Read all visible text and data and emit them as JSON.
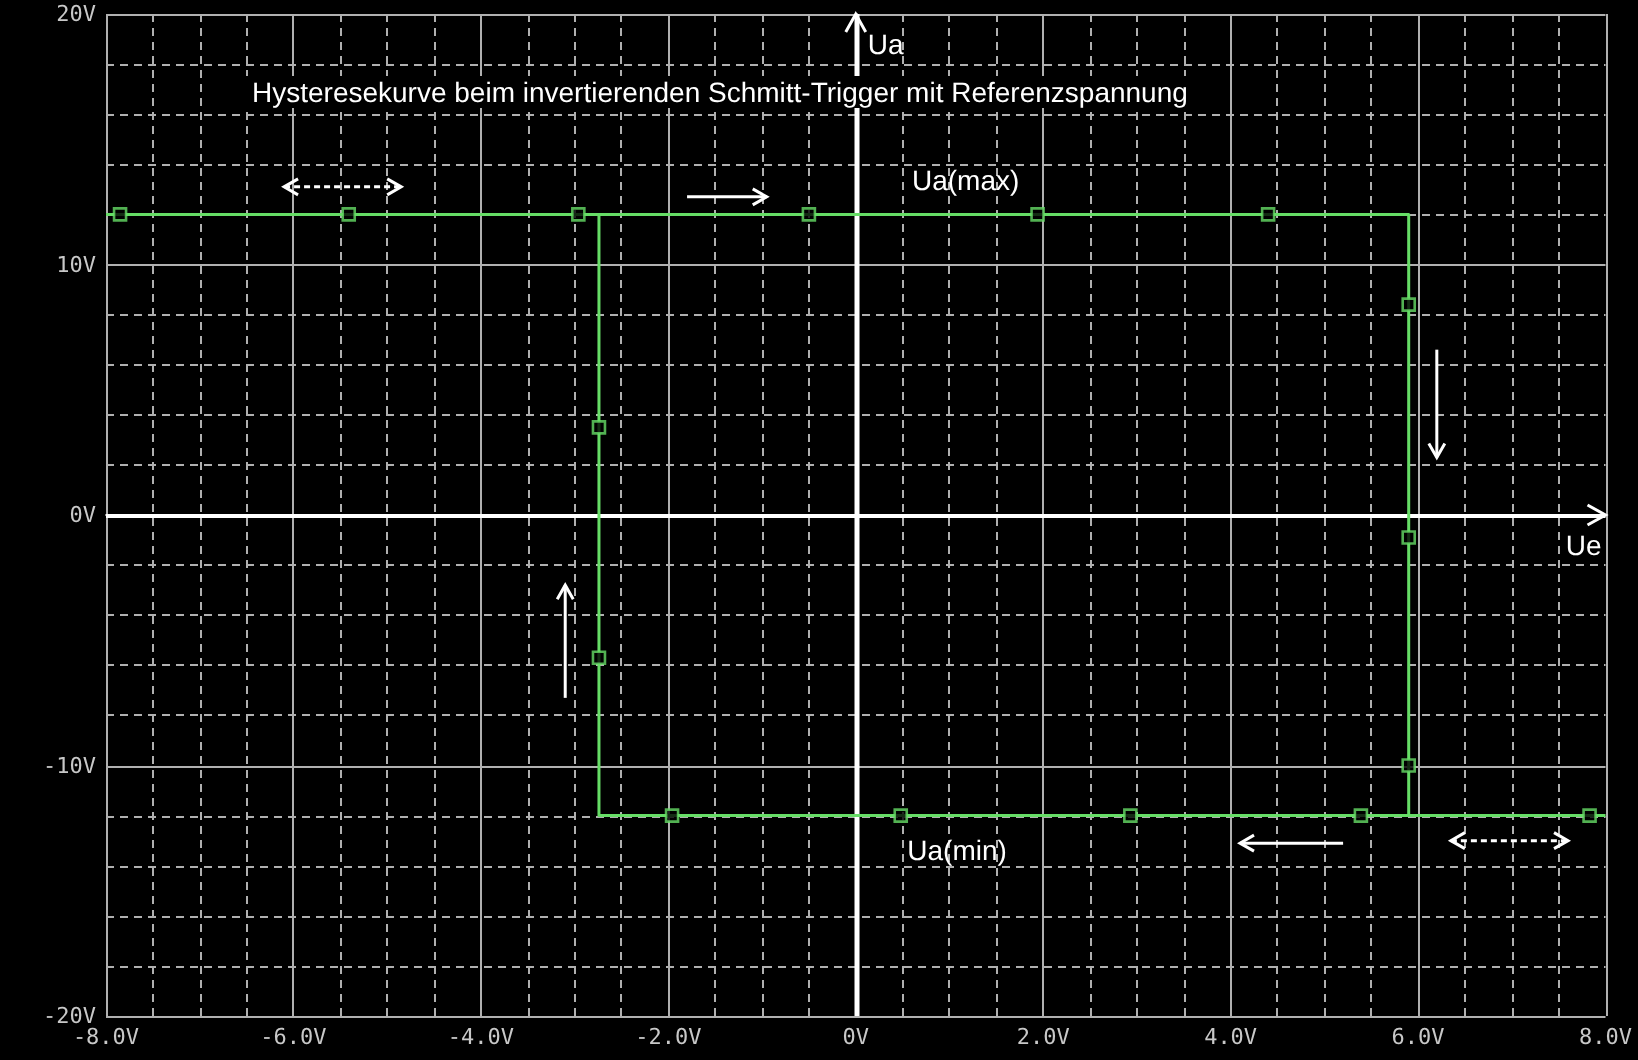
{
  "chart_data": {
    "type": "line",
    "title": "Hysteresekurve beim invertierenden Schmitt-Trigger mit Referenzspannung",
    "series": [
      {
        "color": "#66dd66",
        "marker": "none",
        "x": [
          -8,
          5.9,
          5.9
        ],
        "values": [
          12,
          12,
          -12
        ]
      },
      {
        "color": "#66dd66",
        "marker": "none",
        "x": [
          8,
          -2.74,
          -2.74
        ],
        "values": [
          -12,
          -12,
          12
        ]
      },
      {
        "type": "scatter",
        "color": "#66dd66",
        "marker": "square",
        "x": [
          -7.85,
          -5.41,
          -2.96,
          -0.5,
          1.94,
          4.4,
          5.9,
          5.9,
          5.9,
          7.83,
          5.39,
          2.93,
          0.48,
          -1.96,
          -2.74,
          -2.74
        ],
        "values": [
          12,
          12,
          12,
          12,
          12,
          12,
          8.4,
          -0.9,
          -10,
          -12,
          -12,
          -12,
          -12,
          -12,
          -5.7,
          3.5
        ]
      }
    ],
    "xlim": [
      -8,
      8
    ],
    "xticks": [
      {
        "value": -8,
        "label": "-8.0V"
      },
      {
        "value": -6,
        "label": "-6.0V"
      },
      {
        "value": -4,
        "label": "-4.0V"
      },
      {
        "value": -2,
        "label": "-2.0V"
      },
      {
        "value": 0,
        "label": "0V"
      },
      {
        "value": 2,
        "label": "2.0V"
      },
      {
        "value": 4,
        "label": "4.0V"
      },
      {
        "value": 6,
        "label": "6.0V"
      },
      {
        "value": 8,
        "label": "8.0V"
      }
    ],
    "ylim": [
      -20,
      20
    ],
    "yticks": [
      {
        "value": -20,
        "label": "-20V"
      },
      {
        "value": -10,
        "label": "-10V"
      },
      {
        "value": 0,
        "label": "0V"
      },
      {
        "value": 10,
        "label": "10V"
      },
      {
        "value": 20,
        "label": "20V"
      }
    ],
    "grid": true,
    "ref_lines": [
      {
        "axis": "x",
        "value": 0,
        "label": "Ua",
        "color": "#ffffff"
      },
      {
        "axis": "y",
        "value": 0,
        "label": "Ue",
        "color": "#ffffff"
      }
    ],
    "annotations": [
      "Ua(max)",
      "Ua(min)"
    ]
  }
}
